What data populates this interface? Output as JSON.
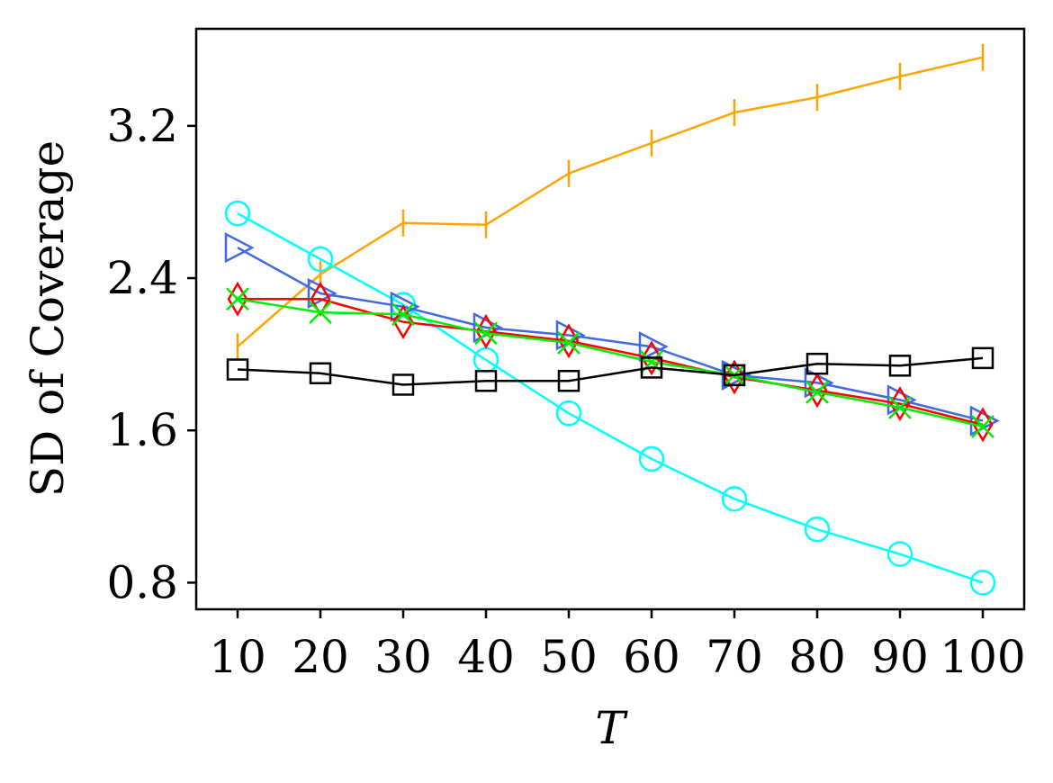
{
  "chart_data": {
    "type": "line",
    "title": "",
    "xlabel": "T",
    "ylabel": "SD of Coverage",
    "x": [
      10,
      20,
      30,
      40,
      50,
      60,
      70,
      80,
      90,
      100
    ],
    "xticks": [
      "10",
      "20",
      "30",
      "40",
      "50",
      "60",
      "70",
      "80",
      "90",
      "100"
    ],
    "yticks": [
      "0.8",
      "1.6",
      "2.4",
      "3.2"
    ],
    "ytick_values": [
      0.8,
      1.6,
      2.4,
      3.2
    ],
    "xlim": [
      5,
      105
    ],
    "ylim": [
      0.66,
      3.71
    ],
    "grid": false,
    "series": [
      {
        "name": "orange-vline",
        "color": "#FFA500",
        "marker": "vline",
        "values": [
          2.04,
          2.42,
          2.69,
          2.68,
          2.95,
          3.11,
          3.27,
          3.35,
          3.46,
          3.56
        ]
      },
      {
        "name": "cyan-circle",
        "color": "#00FFFF",
        "marker": "circle",
        "values": [
          2.74,
          2.5,
          2.26,
          1.97,
          1.69,
          1.45,
          1.24,
          1.08,
          0.95,
          0.8
        ]
      },
      {
        "name": "blue-triangle-right",
        "color": "#4169E1",
        "marker": "triangle-right",
        "values": [
          2.56,
          2.32,
          2.25,
          2.14,
          2.1,
          2.04,
          1.89,
          1.85,
          1.76,
          1.65
        ]
      },
      {
        "name": "red-diamond",
        "color": "#FF0000",
        "marker": "diamond",
        "values": [
          2.29,
          2.29,
          2.17,
          2.12,
          2.07,
          1.98,
          1.88,
          1.81,
          1.74,
          1.63
        ]
      },
      {
        "name": "green-x",
        "color": "#00EE00",
        "marker": "x",
        "values": [
          2.29,
          2.22,
          2.21,
          2.11,
          2.06,
          1.96,
          1.89,
          1.8,
          1.72,
          1.62
        ]
      },
      {
        "name": "black-square",
        "color": "#000000",
        "marker": "square",
        "values": [
          1.92,
          1.9,
          1.84,
          1.86,
          1.86,
          1.93,
          1.89,
          1.95,
          1.94,
          1.98
        ]
      }
    ]
  }
}
